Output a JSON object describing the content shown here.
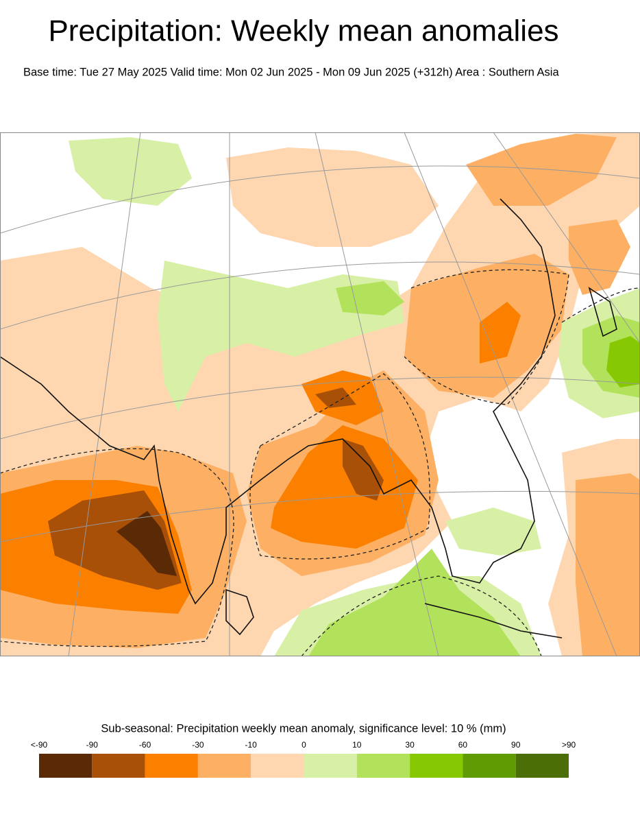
{
  "header": {
    "title": "Precipitation: Weekly mean anomalies",
    "subtitle": "Base time: Tue 27 May 2025 Valid time: Mon 02 Jun 2025 - Mon 09 Jun 2025 (+312h) Area : Southern Asia"
  },
  "legend": {
    "title": "Sub-seasonal: Precipitation weekly mean anomaly, significance level: 10 % (mm)",
    "labels": [
      "<-90",
      "-90",
      "-60",
      "-30",
      "-10",
      "0",
      "10",
      "30",
      "60",
      "90",
      ">90"
    ],
    "colors": [
      "#5a2a07",
      "#a84f08",
      "#fb8000",
      "#fdb064",
      "#fed7b0",
      "#d8f0a6",
      "#b2e25c",
      "#86c902",
      "#5f9b03",
      "#4c6e07"
    ]
  }
}
